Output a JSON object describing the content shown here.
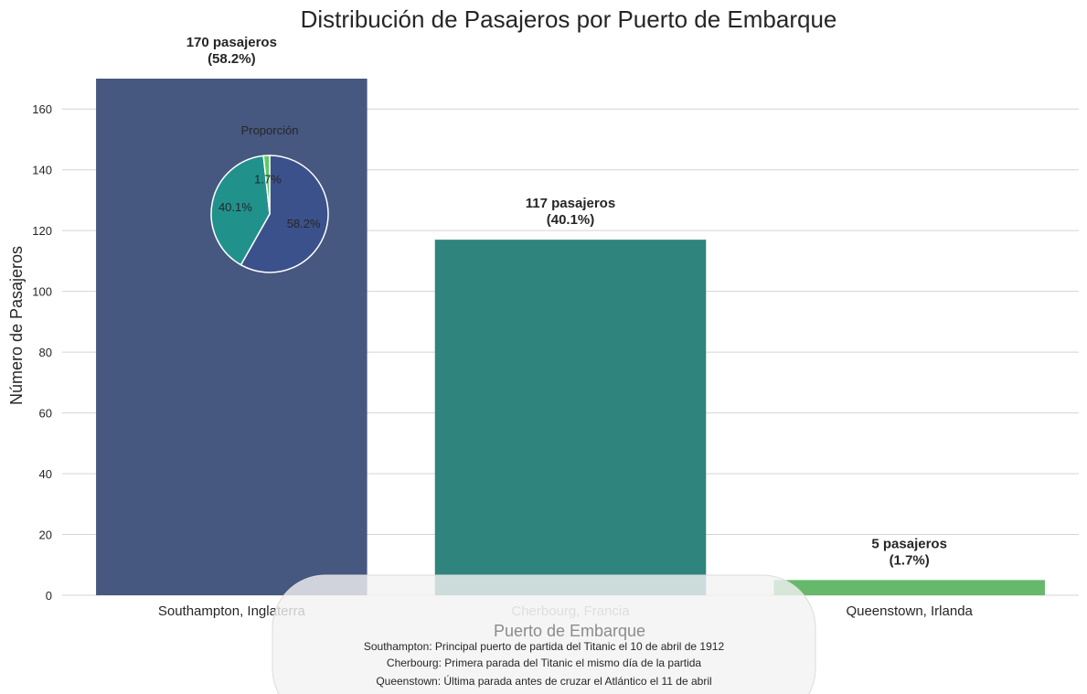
{
  "chart_data": {
    "type": "bar",
    "title": "Distribución de Pasajeros por Puerto de Embarque",
    "xlabel": "Puerto de Embarque",
    "ylabel": "Número de Pasajeros",
    "categories": [
      "Southampton, Inglaterra",
      "Cherbourg, Francia",
      "Queenstown, Irlanda"
    ],
    "values": [
      170,
      117,
      5
    ],
    "bar_labels": [
      [
        "170 pasajeros",
        "(58.2%)"
      ],
      [
        "117 pasajeros",
        "(40.1%)"
      ],
      [
        "5 pasajeros",
        "(1.7%)"
      ]
    ],
    "colors": [
      "#465780",
      "#2f847d",
      "#66b86b"
    ],
    "ylim": [
      0,
      170
    ],
    "yticks": [
      0,
      20,
      40,
      60,
      80,
      100,
      120,
      140,
      160
    ],
    "grid": "horizontal",
    "inset_pie": {
      "title": "Proporción",
      "values": [
        58.2,
        40.1,
        1.7
      ],
      "labels": [
        "58.2%",
        "40.1%",
        "1.7%"
      ],
      "colors": [
        "#3b518b",
        "#21918c",
        "#5ec962"
      ]
    },
    "annotation": [
      "Southampton: Principal puerto de partida del Titanic el 10 de abril de 1912",
      "Cherbourg: Primera parada del Titanic el mismo día de la partida",
      "Queenstown: Última parada antes de cruzar el Atlántico el 11 de abril"
    ]
  }
}
